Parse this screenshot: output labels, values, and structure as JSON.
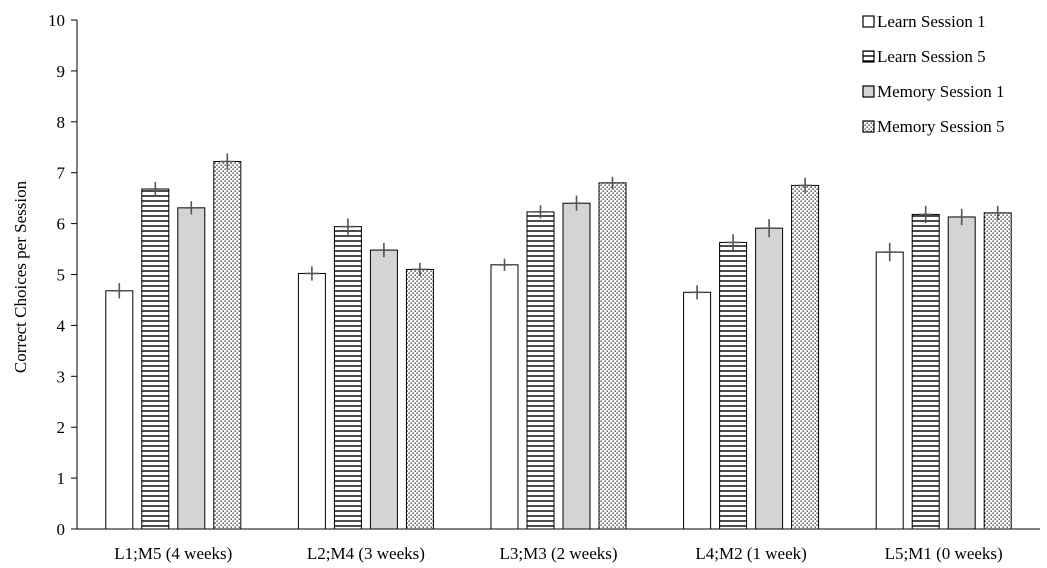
{
  "chart_data": {
    "type": "bar",
    "title": "",
    "xlabel": "",
    "ylabel": "Correct Choices per Session",
    "ylim": [
      0,
      10
    ],
    "yticks": [
      0,
      1,
      2,
      3,
      4,
      5,
      6,
      7,
      8,
      9,
      10
    ],
    "grid": false,
    "legend_position": "top-right",
    "categories": [
      "L1;M5 (4 weeks)",
      "L2;M4 (3 weeks)",
      "L3;M3 (2 weeks)",
      "L4;M2 (1 week)",
      "L5;M1 (0 weeks)"
    ],
    "series": [
      {
        "name": "Learn Session 1",
        "pattern": "solid-white",
        "values": [
          4.68,
          5.02,
          5.19,
          4.65,
          5.44
        ],
        "errors": [
          0.15,
          0.14,
          0.12,
          0.14,
          0.18
        ]
      },
      {
        "name": "Learn Session 5",
        "pattern": "horizontal-lines",
        "values": [
          6.68,
          5.94,
          6.23,
          5.63,
          6.18
        ],
        "errors": [
          0.14,
          0.16,
          0.13,
          0.16,
          0.17
        ]
      },
      {
        "name": "Memory Session 1",
        "pattern": "solid-gray",
        "values": [
          6.31,
          5.48,
          6.4,
          5.91,
          6.13
        ],
        "errors": [
          0.13,
          0.14,
          0.15,
          0.18,
          0.16
        ]
      },
      {
        "name": "Memory Session 5",
        "pattern": "dotted",
        "values": [
          7.22,
          5.1,
          6.8,
          6.75,
          6.21
        ],
        "errors": [
          0.16,
          0.13,
          0.12,
          0.15,
          0.14
        ]
      }
    ],
    "colors": {
      "bar_stroke": "#000000",
      "error_bar": "#555555",
      "gray_fill": "#d4d4d4",
      "axis": "#000000"
    }
  }
}
